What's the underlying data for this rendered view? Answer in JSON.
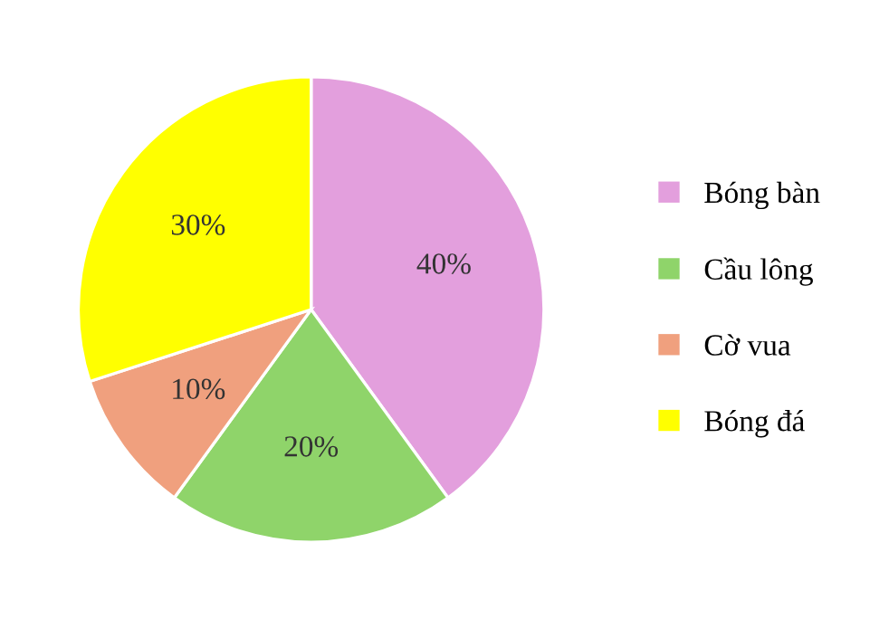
{
  "chart_data": {
    "type": "pie",
    "categories": [
      "Bóng bàn",
      "Cầu lông",
      "Cờ vua",
      "Bóng đá"
    ],
    "values": [
      40,
      20,
      10,
      30
    ],
    "colors": [
      "#e39fdd",
      "#8fd46a",
      "#f0a07e",
      "#ffff00"
    ],
    "value_labels": [
      "40%",
      "20%",
      "10%",
      "30%"
    ],
    "legend": "right"
  }
}
